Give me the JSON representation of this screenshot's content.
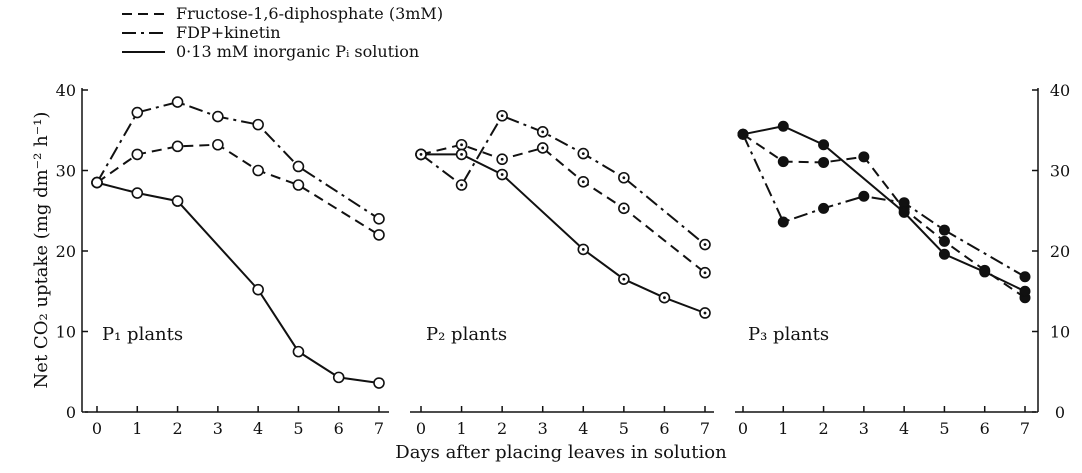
{
  "chart_data": {
    "type": "line",
    "xlabel": "Days after placing leaves in solution",
    "ylabel": "Net CO₂ uptake (mg dm⁻² h⁻¹)",
    "x": [
      0,
      1,
      2,
      3,
      4,
      5,
      6,
      7
    ],
    "xlim": [
      0,
      7
    ],
    "ylim": [
      0,
      40
    ],
    "x_ticks": [
      "0",
      "1",
      "2",
      "3",
      "4",
      "5",
      "6",
      "7"
    ],
    "y_ticks": [
      "0",
      "10",
      "20",
      "30",
      "40"
    ],
    "grid": false,
    "legend": {
      "placement": "top-left",
      "entries": [
        {
          "label": "Fructose-1,6-diphosphate (3mM)",
          "style": "dashed"
        },
        {
          "label": "FDP+kinetin",
          "style": "dashdot"
        },
        {
          "label": "0·13 mM inorganic Pᵢ solution",
          "style": "solid"
        }
      ]
    },
    "panels": [
      {
        "label": "P₁ plants",
        "marker": "open-circle",
        "series": [
          {
            "style": "dashed",
            "x": [
              0,
              1,
              2,
              3,
              4,
              5,
              7
            ],
            "values": [
              28.5,
              32,
              33,
              33.2,
              30,
              28.2,
              22
            ]
          },
          {
            "style": "dashdot",
            "x": [
              0,
              1,
              2,
              3,
              4,
              5,
              7
            ],
            "values": [
              28.5,
              37.2,
              38.5,
              36.7,
              35.7,
              30.5,
              24
            ]
          },
          {
            "style": "solid",
            "x": [
              0,
              1,
              2,
              4,
              5,
              6,
              7
            ],
            "values": [
              28.5,
              27.2,
              26.2,
              15.2,
              7.5,
              4.3,
              3.6
            ]
          }
        ]
      },
      {
        "label": "P₂ plants",
        "marker": "dotted-circle",
        "series": [
          {
            "style": "dashed",
            "x": [
              0,
              1,
              2,
              3,
              4,
              5,
              7
            ],
            "values": [
              32,
              33.2,
              31.4,
              32.8,
              28.6,
              25.3,
              17.3
            ]
          },
          {
            "style": "dashdot",
            "x": [
              0,
              1,
              2,
              3,
              4,
              5,
              7
            ],
            "values": [
              32,
              28.2,
              36.8,
              34.8,
              32.1,
              29.1,
              20.8
            ]
          },
          {
            "style": "solid",
            "x": [
              0,
              1,
              2,
              4,
              5,
              6,
              7
            ],
            "values": [
              32,
              32,
              29.5,
              20.2,
              16.5,
              14.2,
              12.3
            ]
          }
        ]
      },
      {
        "label": "P₃ plants",
        "marker": "filled-circle",
        "series": [
          {
            "style": "dashed",
            "x": [
              0,
              1,
              2,
              3,
              4,
              5,
              6,
              7
            ],
            "values": [
              34.5,
              31.1,
              31,
              31.7,
              25.2,
              21.2,
              17.6,
              14.2
            ]
          },
          {
            "style": "dashdot",
            "x": [
              0,
              1,
              2,
              3,
              4,
              5,
              7
            ],
            "values": [
              34.5,
              23.6,
              25.3,
              26.8,
              26,
              22.6,
              16.8
            ]
          },
          {
            "style": "solid",
            "x": [
              0,
              1,
              2,
              4,
              5,
              6,
              7
            ],
            "values": [
              34.5,
              35.5,
              33.2,
              24.8,
              19.6,
              17.4,
              15
            ]
          }
        ]
      }
    ]
  }
}
